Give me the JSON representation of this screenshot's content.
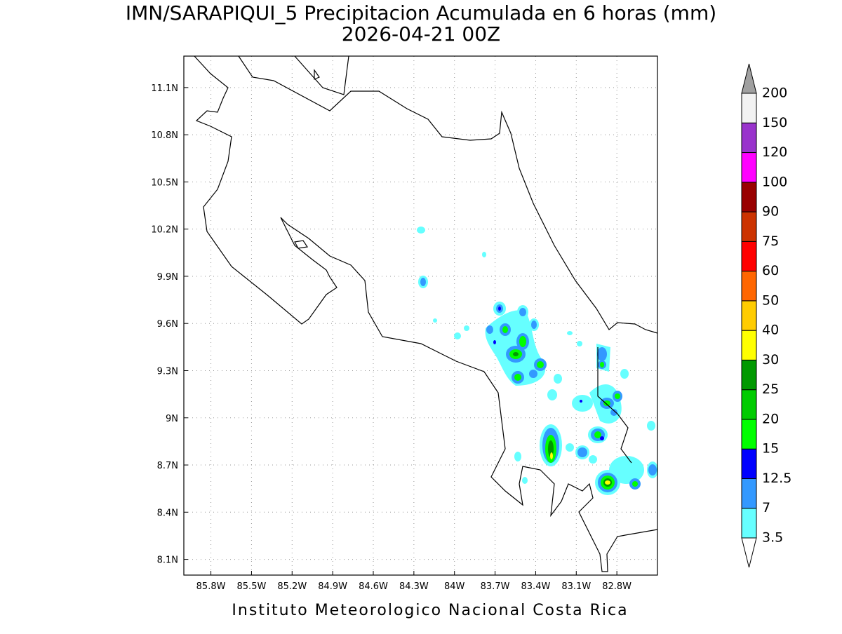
{
  "title": "IMN/SARAPIQUI_5 Precipitacion Acumulada en 6 horas (mm)",
  "subtitle": "2026-04-21 00Z",
  "footer": "Instituto Meteorologico Nacional Costa Rica",
  "map": {
    "lonlim": [
      -86,
      -82.5
    ],
    "latlim": [
      8,
      11.3
    ],
    "grid": true,
    "xticks": [
      {
        "value": -85.8,
        "label": "85.8W"
      },
      {
        "value": -85.5,
        "label": "85.5W"
      },
      {
        "value": -85.2,
        "label": "85.2W"
      },
      {
        "value": -84.9,
        "label": "84.9W"
      },
      {
        "value": -84.6,
        "label": "84.6W"
      },
      {
        "value": -84.3,
        "label": "84.3W"
      },
      {
        "value": -84,
        "label": "84W"
      },
      {
        "value": -83.7,
        "label": "83.7W"
      },
      {
        "value": -83.4,
        "label": "83.4W"
      },
      {
        "value": -83.1,
        "label": "83.1W"
      },
      {
        "value": -82.8,
        "label": "82.8W"
      }
    ],
    "yticks": [
      {
        "value": 8.1,
        "label": "8.1N"
      },
      {
        "value": 8.4,
        "label": "8.4N"
      },
      {
        "value": 8.7,
        "label": "8.7N"
      },
      {
        "value": 9,
        "label": "9N"
      },
      {
        "value": 9.3,
        "label": "9.3N"
      },
      {
        "value": 9.6,
        "label": "9.6N"
      },
      {
        "value": 9.9,
        "label": "9.9N"
      },
      {
        "value": 10.2,
        "label": "10.2N"
      },
      {
        "value": 10.5,
        "label": "10.5N"
      },
      {
        "value": 10.8,
        "label": "10.8N"
      },
      {
        "value": 11.1,
        "label": "11.1N"
      }
    ]
  },
  "colorbar": {
    "levels": [
      3.5,
      7,
      12.5,
      15,
      20,
      25,
      30,
      40,
      50,
      60,
      75,
      90,
      100,
      120,
      150,
      200
    ],
    "colors": [
      "#66ffff",
      "#3399ff",
      "#0000ff",
      "#00ff00",
      "#00cc00",
      "#009900",
      "#ffff00",
      "#ffcc00",
      "#ff6600",
      "#ff0000",
      "#cc3300",
      "#990000",
      "#ff00ff",
      "#9933cc",
      "#f2f2f2"
    ],
    "under_color": "#ffffff",
    "over_color": "#a0a0a0"
  }
}
